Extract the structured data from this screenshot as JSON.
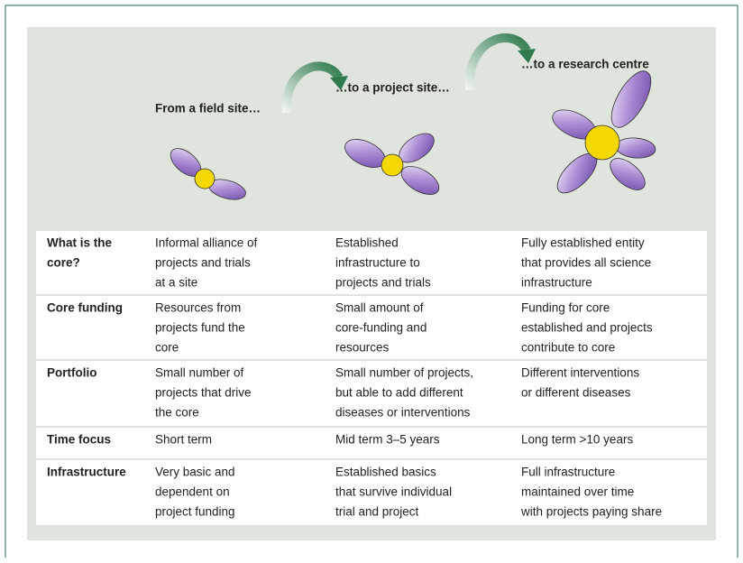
{
  "stages": [
    "From a field site…",
    "…to a project site…",
    "…to a research centre"
  ],
  "table": {
    "rows": [
      {
        "label": [
          "What is the",
          "core?"
        ],
        "cells": [
          [
            "Informal alliance of",
            "projects and trials",
            "at a site"
          ],
          [
            "Established",
            "infrastructure to",
            "projects and trials"
          ],
          [
            "Fully established entity",
            "that provides all science",
            "infrastructure"
          ]
        ]
      },
      {
        "label": [
          "Core funding"
        ],
        "cells": [
          [
            "Resources from",
            "projects fund the",
            "core"
          ],
          [
            "Small amount of",
            "core-funding and",
            "resources"
          ],
          [
            "Funding for core",
            "established and projects",
            "contribute to core"
          ]
        ]
      },
      {
        "label": [
          "Portfolio"
        ],
        "cells": [
          [
            "Small number of",
            "projects that drive",
            "the core"
          ],
          [
            "Small number of projects,",
            "but able to add different",
            "diseases or interventions"
          ],
          [
            "Different interventions",
            "or different diseases"
          ]
        ]
      },
      {
        "label": [
          "Time focus"
        ],
        "cells": [
          [
            "Short term"
          ],
          [
            "Mid term 3–5 years"
          ],
          [
            "Long term >10 years"
          ]
        ]
      },
      {
        "label": [
          "Infrastructure"
        ],
        "cells": [
          [
            "Very basic and",
            "dependent on",
            "project funding"
          ],
          [
            "Established basics",
            "that survive individual",
            "trial and project"
          ],
          [
            "Full infrastructure",
            "maintained over time",
            "with projects paying share"
          ]
        ]
      }
    ]
  }
}
